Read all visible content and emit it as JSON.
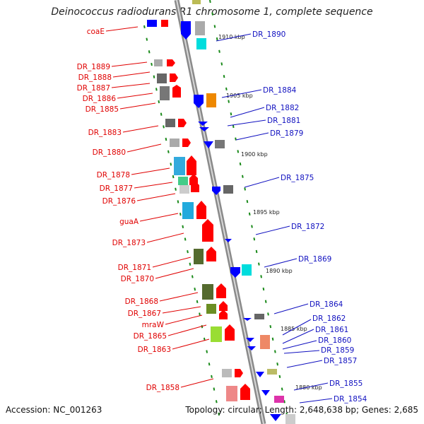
{
  "title": "Deinococcus radiodurans R1 chromosome 1, complete sequence",
  "accession": "Accession: NC_001263",
  "topology": "Topology: circular; Length: 2,648,638 bp; Genes: 2,685",
  "colors": {
    "forward": "#ff0000",
    "reverse": "#0000ff",
    "label_forward": "#e00000",
    "label_reverse": "#1010c0",
    "tick": "#1a8a1a",
    "backbone": "#888888"
  },
  "kbp_labels": [
    "1910 kbp",
    "1905 kbp",
    "1900 kbp",
    "1895 kbp",
    "1890 kbp",
    "1885 kbp",
    "1880 kbp"
  ],
  "left_labels": [
    "coaE",
    "DR_1889",
    "DR_1888",
    "DR_1887",
    "DR_1886",
    "DR_1885",
    "DR_1883",
    "DR_1880",
    "DR_1878",
    "DR_1877",
    "DR_1876",
    "guaA",
    "DR_1873",
    "DR_1871",
    "DR_1870",
    "DR_1868",
    "DR_1867",
    "mraW",
    "DR_1865",
    "DR_1863",
    "DR_1858"
  ],
  "right_labels": [
    "DR_1890",
    "DR_1884",
    "DR_1882",
    "DR_1881",
    "DR_1879",
    "DR_1875",
    "DR_1872",
    "DR_1869",
    "DR_1864",
    "DR_1862",
    "DR_1861",
    "DR_1860",
    "DR_1859",
    "DR_1857",
    "DR_1855",
    "DR_1854"
  ]
}
